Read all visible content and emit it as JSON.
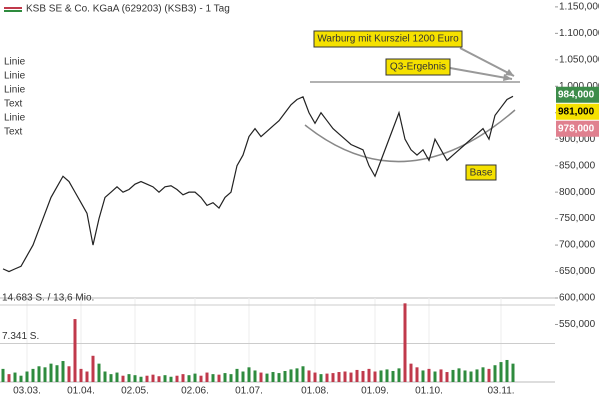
{
  "chart_data": {
    "type": "line",
    "title": "KSB SE & Co. KGaA (629203) (KSB3) - 1 Tag",
    "legend": [
      "Linie",
      "Linie",
      "Linie",
      "Text",
      "Linie",
      "Text"
    ],
    "categories": [
      null,
      null,
      null,
      null,
      "03.03.",
      null,
      null,
      null,
      null,
      null,
      null,
      null,
      null,
      "01.04.",
      null,
      null,
      null,
      null,
      null,
      null,
      null,
      null,
      "02.05.",
      null,
      null,
      null,
      null,
      null,
      null,
      null,
      null,
      null,
      "02.06.",
      null,
      null,
      null,
      null,
      null,
      null,
      null,
      null,
      "01.07.",
      null,
      null,
      null,
      null,
      null,
      null,
      null,
      null,
      null,
      null,
      "01.08.",
      null,
      null,
      null,
      null,
      null,
      null,
      null,
      null,
      null,
      "01.09.",
      null,
      null,
      null,
      null,
      null,
      null,
      null,
      null,
      "01.10.",
      null,
      null,
      null,
      null,
      null,
      null,
      null,
      null,
      null,
      null,
      null,
      "03.11.",
      null,
      null
    ],
    "series": [
      {
        "name": "KSB3",
        "color": "#222222",
        "values": [
          655,
          650,
          655,
          660,
          680,
          700,
          730,
          760,
          790,
          810,
          830,
          820,
          800,
          780,
          760,
          700,
          750,
          790,
          800,
          810,
          800,
          805,
          815,
          820,
          815,
          810,
          800,
          810,
          812,
          805,
          795,
          800,
          800,
          790,
          775,
          780,
          770,
          790,
          800,
          850,
          870,
          905,
          920,
          905,
          915,
          925,
          935,
          950,
          965,
          975,
          980,
          950,
          930,
          950,
          935,
          920,
          910,
          900,
          890,
          885,
          880,
          850,
          830,
          860,
          890,
          920,
          950,
          900,
          880,
          870,
          880,
          860,
          900,
          880,
          860,
          870,
          880,
          890,
          900,
          910,
          920,
          900,
          945,
          960,
          975,
          981
        ]
      }
    ],
    "ylim": [
      600,
      1163
    ],
    "yticks": [
      {
        "value": 1150,
        "label": "1.150,000"
      },
      {
        "value": 1100,
        "label": "1.100,000"
      },
      {
        "value": 1050,
        "label": "1.050,000"
      },
      {
        "value": 1000,
        "label": "1.000,000"
      },
      {
        "value": 950,
        "label": "950,000"
      },
      {
        "value": 900,
        "label": "900,000"
      },
      {
        "value": 850,
        "label": "850,000"
      },
      {
        "value": 800,
        "label": "800,000"
      },
      {
        "value": 750,
        "label": "750,000"
      },
      {
        "value": 700,
        "label": "700,000"
      },
      {
        "value": 650,
        "label": "650,000"
      },
      {
        "value": 600,
        "label": "600,000"
      },
      {
        "value": 550,
        "label": "550,000"
      }
    ],
    "price_labels": [
      {
        "value": 984,
        "label": "984,000",
        "color": "#3d8c4a"
      },
      {
        "value": 981,
        "label": "981,000",
        "color": "#f5e100"
      },
      {
        "value": 978,
        "label": "978,000",
        "color": "#e0808f"
      }
    ],
    "annotations": [
      "Warburg mit Kursziel 1200 Euro",
      "Q3-Ergebnis",
      "Base"
    ],
    "volume": {
      "values": [
        2500,
        1500,
        1800,
        1200,
        2000,
        2500,
        3000,
        2800,
        3500,
        3200,
        4000,
        3000,
        12000,
        2500,
        2000,
        5000,
        3500,
        2000,
        1500,
        1800,
        1200,
        1500,
        1300,
        1000,
        1200,
        1400,
        1100,
        1300,
        1000,
        1200,
        1500,
        1300,
        1600,
        1200,
        1800,
        1500,
        1400,
        1700,
        1500,
        2500,
        2000,
        2800,
        2200,
        1800,
        1600,
        1900,
        1700,
        2100,
        2400,
        2600,
        3000,
        2200,
        1800,
        1500,
        1600,
        1700,
        1900,
        2000,
        1800,
        2300,
        2100,
        2500,
        2000,
        2200,
        2400,
        2100,
        2600,
        15000,
        3500,
        2800,
        2200,
        2500,
        2000,
        2400,
        1900,
        2300,
        2600,
        2200,
        2000,
        2400,
        2800,
        2500,
        3200,
        3800,
        4200,
        3500
      ],
      "ylim": [
        0,
        14683
      ],
      "yticks": [
        {
          "value": 14683,
          "label": "14.683 S. / 13,6 Mio."
        },
        {
          "value": 7341,
          "label": "7.341 S."
        }
      ],
      "up_color": "#2e8b3e",
      "down_color": "#c0394b"
    }
  }
}
